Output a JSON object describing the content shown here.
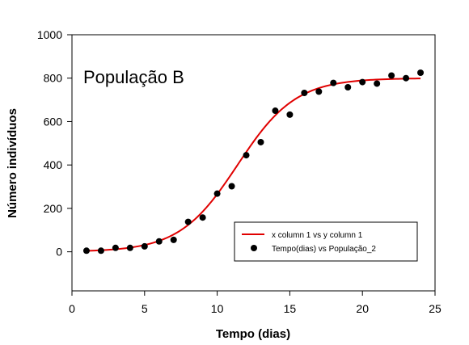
{
  "chart_data": {
    "type": "scatter",
    "title": "",
    "annotation": "População B",
    "xlabel": "Tempo (dias)",
    "ylabel": "Número indivíduos",
    "xlim": [
      0,
      25
    ],
    "ylim": [
      -180,
      1000
    ],
    "xticks": [
      0,
      5,
      10,
      15,
      20,
      25
    ],
    "yticks": [
      0,
      200,
      400,
      600,
      800,
      1000
    ],
    "grid": false,
    "legend_position": "lower-right",
    "series": [
      {
        "name": "x column 1 vs y column 1",
        "kind": "line",
        "color": "#e00000",
        "model": {
          "form": "logistic",
          "K": 800,
          "r": 0.5,
          "x0": 11.4,
          "x_range": [
            1,
            24
          ]
        }
      },
      {
        "name": "Tempo(dias) vs População_2",
        "kind": "scatter",
        "color": "#000000",
        "points": [
          [
            1,
            5
          ],
          [
            2,
            5
          ],
          [
            3,
            18
          ],
          [
            4,
            18
          ],
          [
            5,
            25
          ],
          [
            6,
            48
          ],
          [
            7,
            55
          ],
          [
            8,
            138
          ],
          [
            9,
            158
          ],
          [
            10,
            268
          ],
          [
            11,
            302
          ],
          [
            12,
            445
          ],
          [
            13,
            505
          ],
          [
            14,
            650
          ],
          [
            15,
            632
          ],
          [
            16,
            732
          ],
          [
            17,
            738
          ],
          [
            18,
            778
          ],
          [
            19,
            758
          ],
          [
            20,
            782
          ],
          [
            21,
            775
          ],
          [
            22,
            812
          ],
          [
            23,
            800
          ],
          [
            24,
            825
          ]
        ]
      }
    ]
  }
}
